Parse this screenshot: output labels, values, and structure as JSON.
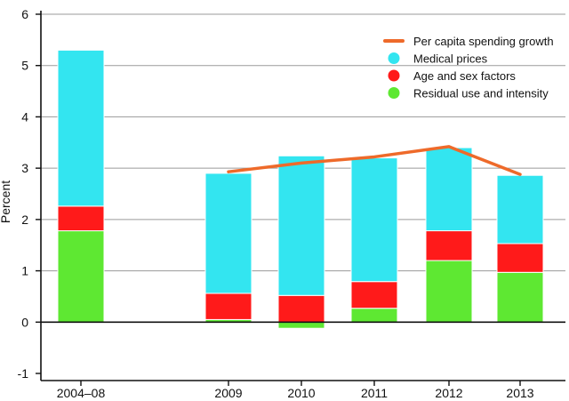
{
  "chart_data": {
    "type": "bar",
    "stacked": true,
    "title": "",
    "xlabel": "",
    "ylabel": "Percent",
    "ylim": [
      -1,
      6
    ],
    "yticks": [
      "-1",
      "0",
      "1",
      "2",
      "3",
      "4",
      "5",
      "6"
    ],
    "grid": true,
    "legend_position": "top-right",
    "categories": [
      "2004–08",
      "2009",
      "2010",
      "2011",
      "2012",
      "2013"
    ],
    "series": [
      {
        "name": "Residual use and intensity",
        "type": "bar",
        "color": "#5ee832",
        "values": [
          1.78,
          0.05,
          -0.12,
          0.27,
          1.2,
          0.97
        ]
      },
      {
        "name": "Age and sex factors",
        "type": "bar",
        "color": "#ff1a1a",
        "values": [
          0.48,
          0.51,
          0.52,
          0.52,
          0.58,
          0.56
        ]
      },
      {
        "name": "Medical prices",
        "type": "bar",
        "color": "#33e5f0",
        "values": [
          3.04,
          2.34,
          2.72,
          2.41,
          1.62,
          1.33
        ]
      },
      {
        "name": "Per capita spending growth",
        "type": "line",
        "color": "#ee6a2a",
        "values": [
          null,
          2.93,
          3.1,
          3.22,
          3.42,
          2.88
        ]
      }
    ],
    "legend_order": [
      "Per capita spending growth",
      "Medical prices",
      "Age and sex factors",
      "Residual use and intensity"
    ]
  }
}
